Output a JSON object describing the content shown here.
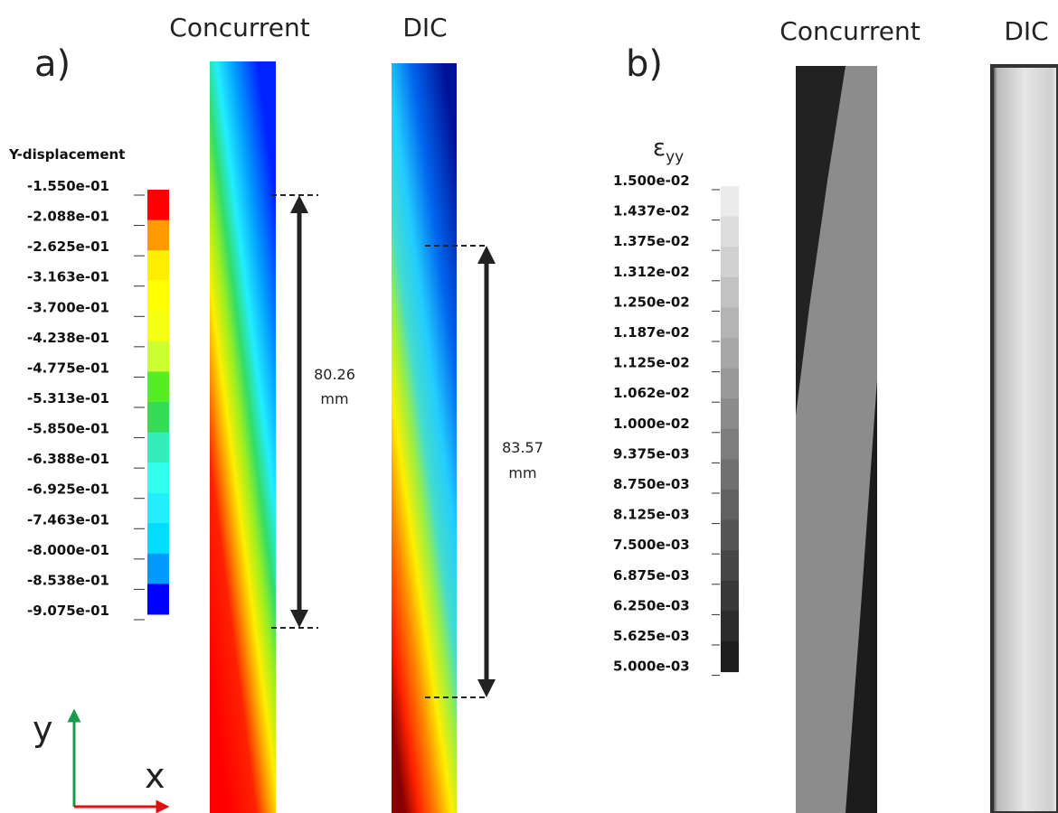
{
  "panel_a": {
    "label": "a)",
    "titles": [
      "Concurrent",
      "DIC"
    ],
    "legend_title": "Y-displacement",
    "legend_labels": [
      "-1.550e-01",
      "-2.088e-01",
      "-2.625e-01",
      "-3.163e-01",
      "-3.700e-01",
      "-4.238e-01",
      "-4.775e-01",
      "-5.313e-01",
      "-5.850e-01",
      "-6.388e-01",
      "-6.925e-01",
      "-7.463e-01",
      "-8.000e-01",
      "-8.538e-01",
      "-9.075e-01"
    ],
    "measurements": [
      {
        "value": "80.26",
        "unit": "mm"
      },
      {
        "value": "83.57",
        "unit": "mm"
      }
    ],
    "axis_labels": {
      "y": "y",
      "x": "x"
    }
  },
  "panel_b": {
    "label": "b)",
    "titles": [
      "Concurrent",
      "DIC"
    ],
    "legend_symbol": "ε",
    "legend_subscript": "yy",
    "legend_labels": [
      "1.500e-02",
      "1.437e-02",
      "1.375e-02",
      "1.312e-02",
      "1.250e-02",
      "1.187e-02",
      "1.125e-02",
      "1.062e-02",
      "1.000e-02",
      "9.375e-03",
      "8.750e-03",
      "8.125e-03",
      "7.500e-03",
      "6.875e-03",
      "6.250e-03",
      "5.625e-03",
      "5.000e-03"
    ]
  }
}
